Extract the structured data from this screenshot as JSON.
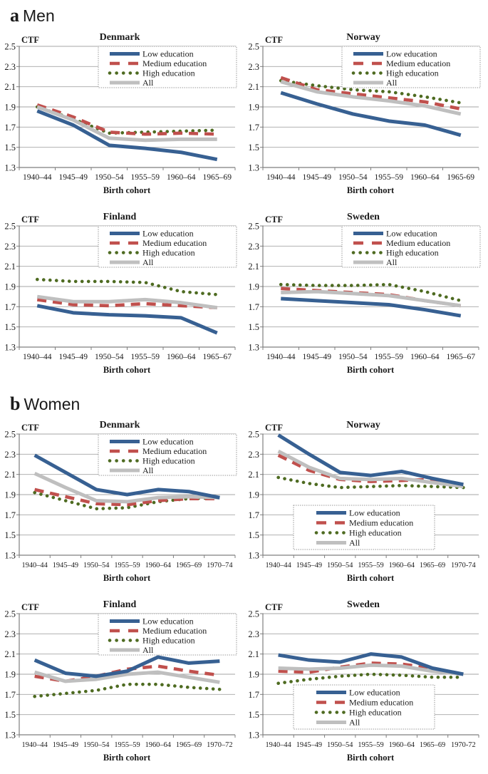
{
  "page": {
    "panel_a": {
      "letter": "a",
      "label": "Men"
    },
    "panel_b": {
      "letter": "b",
      "label": "Women"
    }
  },
  "colors": {
    "low": "#376092",
    "medium": "#C0504D",
    "high": "#4E6B21",
    "all": "#BFBFBF",
    "grid": "#A6A6A6",
    "axis": "#7F7F7F",
    "legend_border": "#999999"
  },
  "chart_data": [
    {
      "id": "men-denmark",
      "panel": "a",
      "type": "line",
      "title": "Denmark",
      "ylabel": "CTF",
      "xlabel": "Birth cohort",
      "ylim": [
        1.3,
        2.5
      ],
      "yticks": [
        1.3,
        1.5,
        1.7,
        1.9,
        2.1,
        2.3,
        2.5
      ],
      "legend_position": "top-right",
      "categories": [
        "1940–44",
        "1945–49",
        "1950–54",
        "1955–59",
        "1960–64",
        "1965–69"
      ],
      "series": [
        {
          "name": "Low education",
          "style": "solid",
          "color": "low",
          "values": [
            1.86,
            1.72,
            1.52,
            1.49,
            1.45,
            1.38
          ]
        },
        {
          "name": "Medium education",
          "style": "dashed",
          "color": "medium",
          "values": [
            1.92,
            1.8,
            1.65,
            1.63,
            1.64,
            1.63
          ]
        },
        {
          "name": "High education",
          "style": "dotted",
          "color": "high",
          "values": [
            1.9,
            1.78,
            1.64,
            1.65,
            1.66,
            1.67
          ]
        },
        {
          "name": "All",
          "style": "solid",
          "color": "all",
          "values": [
            1.9,
            1.77,
            1.59,
            1.57,
            1.58,
            1.58
          ]
        }
      ]
    },
    {
      "id": "men-norway",
      "panel": "a",
      "type": "line",
      "title": "Norway",
      "ylabel": "CTF",
      "xlabel": "Birth cohort",
      "ylim": [
        1.3,
        2.5
      ],
      "yticks": [
        1.3,
        1.5,
        1.7,
        1.9,
        2.1,
        2.3,
        2.5
      ],
      "legend_position": "top-right",
      "categories": [
        "1940–44",
        "1945–49",
        "1950–54",
        "1955–59",
        "1960–64",
        "1965-69"
      ],
      "series": [
        {
          "name": "Low education",
          "style": "solid",
          "color": "low",
          "values": [
            2.04,
            1.93,
            1.83,
            1.76,
            1.72,
            1.62
          ]
        },
        {
          "name": "Medium education",
          "style": "dashed",
          "color": "medium",
          "values": [
            2.19,
            2.07,
            2.03,
            1.99,
            1.95,
            1.88
          ]
        },
        {
          "name": "High education",
          "style": "dotted",
          "color": "high",
          "values": [
            2.16,
            2.11,
            2.07,
            2.05,
            2.0,
            1.94
          ]
        },
        {
          "name": "All",
          "style": "solid",
          "color": "all",
          "values": [
            2.15,
            2.05,
            2.0,
            1.96,
            1.91,
            1.83
          ]
        }
      ]
    },
    {
      "id": "men-finland",
      "panel": "a",
      "type": "line",
      "title": "Finland",
      "ylabel": "CTF",
      "xlabel": "Birth cohort",
      "ylim": [
        1.3,
        2.5
      ],
      "yticks": [
        1.3,
        1.5,
        1.7,
        1.9,
        2.1,
        2.3,
        2.5
      ],
      "legend_position": "top-right",
      "categories": [
        "1940–44",
        "1945–49",
        "1950–54",
        "1955–59",
        "1960–64",
        "1965–67"
      ],
      "series": [
        {
          "name": "Low education",
          "style": "solid",
          "color": "low",
          "values": [
            1.71,
            1.64,
            1.62,
            1.61,
            1.59,
            1.44
          ]
        },
        {
          "name": "Medium education",
          "style": "dashed",
          "color": "medium",
          "values": [
            1.77,
            1.72,
            1.71,
            1.73,
            1.71,
            1.69
          ]
        },
        {
          "name": "High education",
          "style": "dotted",
          "color": "high",
          "values": [
            1.97,
            1.95,
            1.95,
            1.94,
            1.85,
            1.82
          ]
        },
        {
          "name": "All",
          "style": "solid",
          "color": "all",
          "values": [
            1.8,
            1.75,
            1.75,
            1.77,
            1.74,
            1.69
          ]
        }
      ]
    },
    {
      "id": "men-sweden",
      "panel": "a",
      "type": "line",
      "title": "Sweden",
      "ylabel": "CTF",
      "xlabel": "Birth cohort",
      "ylim": [
        1.3,
        2.5
      ],
      "yticks": [
        1.3,
        1.5,
        1.7,
        1.9,
        2.1,
        2.3,
        2.5
      ],
      "legend_position": "top-right",
      "categories": [
        "1940–44",
        "1945–49",
        "1950–54",
        "1955–59",
        "1960–64",
        "1965–67"
      ],
      "series": [
        {
          "name": "Low education",
          "style": "solid",
          "color": "low",
          "values": [
            1.78,
            1.76,
            1.74,
            1.72,
            1.67,
            1.61
          ]
        },
        {
          "name": "Medium education",
          "style": "dashed",
          "color": "medium",
          "values": [
            1.88,
            1.86,
            1.84,
            1.82,
            1.76,
            1.71
          ]
        },
        {
          "name": "High education",
          "style": "dotted",
          "color": "high",
          "values": [
            1.92,
            1.91,
            1.91,
            1.92,
            1.85,
            1.76
          ]
        },
        {
          "name": "All",
          "style": "solid",
          "color": "all",
          "values": [
            1.84,
            1.85,
            1.83,
            1.81,
            1.76,
            1.71
          ]
        }
      ]
    },
    {
      "id": "women-denmark",
      "panel": "b",
      "type": "line",
      "title": "Denmark",
      "ylabel": "CTF",
      "xlabel": "Birth cohort",
      "ylim": [
        1.3,
        2.5
      ],
      "yticks": [
        1.3,
        1.5,
        1.7,
        1.9,
        2.1,
        2.3,
        2.5
      ],
      "legend_position": "top-right",
      "categories": [
        "1940–44",
        "1945–49",
        "1950–54",
        "1955–59",
        "1960–64",
        "1965–69",
        "1970–74"
      ],
      "series": [
        {
          "name": "Low education",
          "style": "solid",
          "color": "low",
          "values": [
            2.29,
            2.12,
            1.95,
            1.9,
            1.95,
            1.93,
            1.87
          ]
        },
        {
          "name": "Medium education",
          "style": "dashed",
          "color": "medium",
          "values": [
            1.95,
            1.88,
            1.81,
            1.8,
            1.84,
            1.86,
            1.86
          ]
        },
        {
          "name": "High education",
          "style": "dotted",
          "color": "high",
          "values": [
            1.92,
            1.84,
            1.76,
            1.77,
            1.83,
            1.86,
            1.87
          ]
        },
        {
          "name": "All",
          "style": "solid",
          "color": "all",
          "values": [
            2.11,
            1.97,
            1.84,
            1.83,
            1.87,
            1.88,
            1.87
          ]
        }
      ]
    },
    {
      "id": "women-norway",
      "panel": "b",
      "type": "line",
      "title": "Norway",
      "ylabel": "CTF",
      "xlabel": "Birth cohort",
      "ylim": [
        1.3,
        2.5
      ],
      "yticks": [
        1.3,
        1.5,
        1.7,
        1.9,
        2.1,
        2.3,
        2.5
      ],
      "legend_position": "bottom-center",
      "categories": [
        "1940–44",
        "1945–49",
        "1950–54",
        "1955–59",
        "1960–64",
        "1965–69",
        "1970-74"
      ],
      "series": [
        {
          "name": "Low education",
          "style": "solid",
          "color": "low",
          "values": [
            2.49,
            2.3,
            2.12,
            2.09,
            2.13,
            2.06,
            2.0
          ]
        },
        {
          "name": "Medium education",
          "style": "dashed",
          "color": "medium",
          "values": [
            2.29,
            2.14,
            2.05,
            2.03,
            2.04,
            2.05,
            2.0
          ]
        },
        {
          "name": "High education",
          "style": "dotted",
          "color": "high",
          "values": [
            2.07,
            2.01,
            1.97,
            1.98,
            1.99,
            1.98,
            1.97
          ]
        },
        {
          "name": "All",
          "style": "solid",
          "color": "all",
          "values": [
            2.33,
            2.17,
            2.06,
            2.05,
            2.06,
            2.02,
            1.98
          ]
        }
      ]
    },
    {
      "id": "women-finland",
      "panel": "b",
      "type": "line",
      "title": "Finland",
      "ylabel": "CTF",
      "xlabel": "Birth cohort",
      "ylim": [
        1.3,
        2.5
      ],
      "yticks": [
        1.3,
        1.5,
        1.7,
        1.9,
        2.1,
        2.3,
        2.5
      ],
      "legend_position": "top-right",
      "categories": [
        "1940–44",
        "1945–49",
        "1950–54",
        "1955–59",
        "1960–64",
        "1965–69",
        "1970–72"
      ],
      "series": [
        {
          "name": "Low education",
          "style": "solid",
          "color": "low",
          "values": [
            2.04,
            1.91,
            1.88,
            1.93,
            2.07,
            2.01,
            2.03
          ]
        },
        {
          "name": "Medium education",
          "style": "dashed",
          "color": "medium",
          "values": [
            1.88,
            1.83,
            1.88,
            1.95,
            1.98,
            1.93,
            1.89
          ]
        },
        {
          "name": "High education",
          "style": "dotted",
          "color": "high",
          "values": [
            1.68,
            1.71,
            1.74,
            1.8,
            1.8,
            1.77,
            1.75
          ]
        },
        {
          "name": "All",
          "style": "solid",
          "color": "all",
          "values": [
            1.92,
            1.83,
            1.85,
            1.9,
            1.92,
            1.87,
            1.82
          ]
        }
      ]
    },
    {
      "id": "women-sweden",
      "panel": "b",
      "type": "line",
      "title": "Sweden",
      "ylabel": "CTF",
      "xlabel": "Birth cohort",
      "ylim": [
        1.3,
        2.5
      ],
      "yticks": [
        1.3,
        1.5,
        1.7,
        1.9,
        2.1,
        2.3,
        2.5
      ],
      "legend_position": "bottom-center",
      "categories": [
        "1940–44",
        "1945–49",
        "1950–54",
        "1955–59",
        "1960–64",
        "1965–69",
        "1970-72"
      ],
      "series": [
        {
          "name": "Low education",
          "style": "solid",
          "color": "low",
          "values": [
            2.09,
            2.04,
            2.02,
            2.1,
            2.07,
            1.96,
            1.9
          ]
        },
        {
          "name": "Medium education",
          "style": "dashed",
          "color": "medium",
          "values": [
            1.93,
            1.92,
            1.97,
            2.01,
            2.0,
            1.96,
            1.9
          ]
        },
        {
          "name": "High education",
          "style": "dotted",
          "color": "high",
          "values": [
            1.81,
            1.85,
            1.88,
            1.9,
            1.89,
            1.87,
            1.87
          ]
        },
        {
          "name": "All",
          "style": "solid",
          "color": "all",
          "values": [
            1.96,
            1.95,
            1.96,
            1.99,
            1.98,
            1.93,
            1.9
          ]
        }
      ]
    }
  ]
}
